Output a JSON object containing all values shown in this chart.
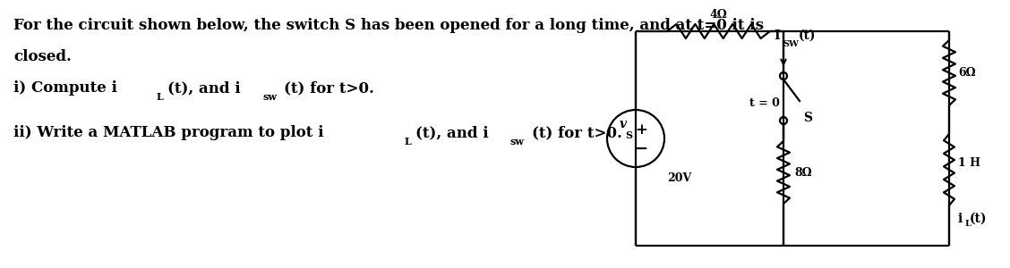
{
  "bg_color": "#ffffff",
  "text_color": "#000000",
  "title_line1": "For the circuit shown below, the switch S has been opened for a long time, and at t=0 it is",
  "title_line2": "closed.",
  "fontsize_main": 12,
  "fontsize_sub": 8,
  "circuit": {
    "resistor_top_label": "4Ω",
    "resistor_right_top_label": "6Ω",
    "resistor_right_bot_label": "1 H",
    "resistor_bot_label": "8Ω",
    "switch_label": "t = 0",
    "switch_s_label": "S",
    "isw_label": "I",
    "isw_sub": "SW",
    "isw_rest": "(t)",
    "vs_label": "v",
    "vs_sub": "S",
    "vs_value": "20V",
    "il_label": "i",
    "il_sub": "L",
    "il_rest": "(t)"
  }
}
